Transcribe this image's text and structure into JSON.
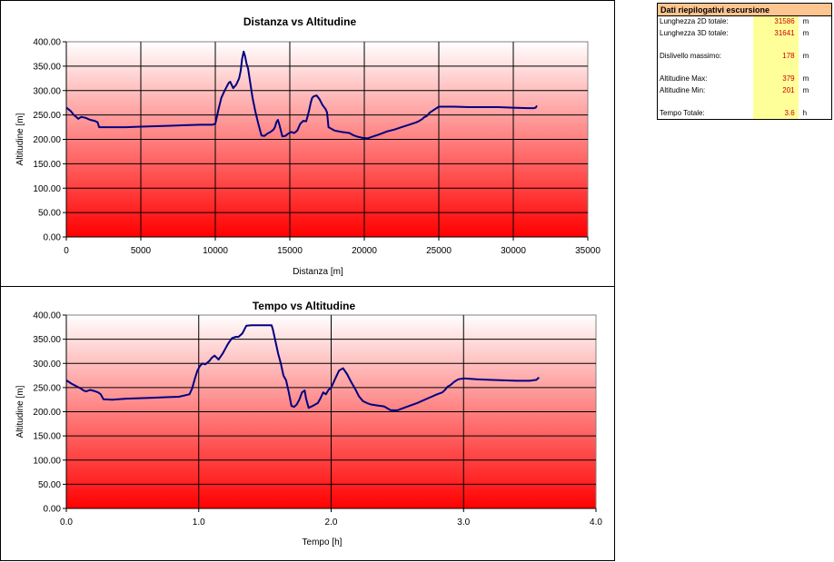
{
  "summary": {
    "title": "Dati riepilogativi escursione",
    "rows": [
      {
        "label": "Lunghezza 2D totale:",
        "value": "31586",
        "unit": "m"
      },
      {
        "label": "Lunghezza 3D totale:",
        "value": "31641",
        "unit": "m"
      },
      {
        "label": "",
        "value": "",
        "unit": ""
      },
      {
        "label": "Dislivello massimo:",
        "value": "178",
        "unit": "m"
      },
      {
        "label": "",
        "value": "",
        "unit": ""
      },
      {
        "label": "Altitudine Max:",
        "value": "379",
        "unit": "m"
      },
      {
        "label": "Altitudine Min:",
        "value": "201",
        "unit": "m"
      },
      {
        "label": "",
        "value": "",
        "unit": ""
      },
      {
        "label": "Tempo Totale:",
        "value": "3.6",
        "unit": "h"
      }
    ]
  },
  "chart_data": [
    {
      "type": "line",
      "title": "Distanza vs Altitudine",
      "xlabel": "Distanza [m]",
      "ylabel": "Altitudine [m]",
      "xlim": [
        0,
        35000
      ],
      "ylim": [
        0,
        400
      ],
      "xticks": [
        "0",
        "5000",
        "10000",
        "15000",
        "20000",
        "25000",
        "30000",
        "35000"
      ],
      "yticks": [
        "0.00",
        "50.00",
        "100.00",
        "150.00",
        "200.00",
        "250.00",
        "300.00",
        "350.00",
        "400.00"
      ],
      "grid": true,
      "line_color": "#000080",
      "background": "gradient white-to-red",
      "series": [
        {
          "x": [
            0,
            300,
            500,
            700,
            800,
            1000,
            1300,
            1600,
            1900,
            2100,
            2200,
            2500,
            3000,
            4000,
            5000,
            6000,
            7000,
            8000,
            9000,
            9800,
            9900,
            10000,
            10100,
            10200,
            10400,
            10600,
            10800,
            10900,
            11000,
            11200,
            11400,
            11600,
            11700,
            11800,
            11900,
            12000,
            12100,
            12200,
            12300,
            12500,
            12700,
            12900,
            13100,
            13300,
            13500,
            13700,
            13900,
            14000,
            14100,
            14200,
            14300,
            14500,
            14700,
            14900,
            15100,
            15300,
            15500,
            15700,
            15900,
            16100,
            16200,
            16300,
            16400,
            16500,
            16600,
            16800,
            17000,
            17200,
            17400,
            17500,
            17600,
            18000,
            18500,
            19000,
            19300,
            19600,
            19900,
            20200,
            20500,
            21000,
            21500,
            22000,
            22500,
            23000,
            23500,
            23700,
            23900,
            24000,
            24200,
            24400,
            24500,
            24600,
            25000,
            26000,
            27000,
            28000,
            29000,
            30000,
            31000,
            31400,
            31500,
            31586
          ],
          "y": [
            265,
            258,
            250,
            245,
            242,
            246,
            244,
            240,
            238,
            235,
            225,
            225,
            225,
            225,
            226,
            227,
            228,
            229,
            230,
            230,
            231,
            232,
            245,
            260,
            285,
            298,
            310,
            316,
            318,
            305,
            312,
            325,
            340,
            365,
            380,
            370,
            355,
            345,
            325,
            285,
            255,
            230,
            208,
            207,
            212,
            215,
            220,
            225,
            235,
            240,
            230,
            206,
            207,
            212,
            215,
            213,
            218,
            232,
            238,
            237,
            248,
            260,
            275,
            285,
            288,
            290,
            282,
            270,
            262,
            255,
            225,
            218,
            215,
            213,
            208,
            205,
            203,
            202,
            205,
            210,
            216,
            220,
            225,
            230,
            235,
            238,
            242,
            245,
            248,
            255,
            257,
            259,
            267,
            267,
            266,
            266,
            266,
            265,
            264,
            264,
            265,
            269
          ]
        }
      ]
    },
    {
      "type": "line",
      "title": "Tempo vs Altitudine",
      "xlabel": "Tempo [h]",
      "ylabel": "Altitudine [m]",
      "xlim": [
        0,
        4
      ],
      "ylim": [
        0,
        400
      ],
      "xticks": [
        "0.0",
        "1.0",
        "2.0",
        "3.0",
        "4.0"
      ],
      "yticks": [
        "0.00",
        "50.00",
        "100.00",
        "150.00",
        "200.00",
        "250.00",
        "300.00",
        "350.00",
        "400.00"
      ],
      "grid": true,
      "line_color": "#000080",
      "background": "gradient white-to-red",
      "series": [
        {
          "x": [
            0,
            0.04,
            0.08,
            0.11,
            0.13,
            0.15,
            0.18,
            0.21,
            0.24,
            0.26,
            0.28,
            0.35,
            0.45,
            0.55,
            0.65,
            0.75,
            0.85,
            0.93,
            0.95,
            0.97,
            0.99,
            1.01,
            1.03,
            1.05,
            1.08,
            1.1,
            1.12,
            1.15,
            1.18,
            1.2,
            1.22,
            1.25,
            1.28,
            1.3,
            1.33,
            1.36,
            1.4,
            1.45,
            1.5,
            1.55,
            1.56,
            1.58,
            1.6,
            1.62,
            1.64,
            1.66,
            1.68,
            1.7,
            1.72,
            1.74,
            1.76,
            1.78,
            1.8,
            1.81,
            1.83,
            1.86,
            1.88,
            1.9,
            1.92,
            1.94,
            1.96,
            1.98,
            2.0,
            2.03,
            2.06,
            2.09,
            2.12,
            2.15,
            2.18,
            2.21,
            2.24,
            2.27,
            2.3,
            2.35,
            2.4,
            2.45,
            2.5,
            2.55,
            2.6,
            2.65,
            2.7,
            2.75,
            2.8,
            2.84,
            2.86,
            2.88,
            2.9,
            2.93,
            2.96,
            3.0,
            3.1,
            3.2,
            3.3,
            3.4,
            3.5,
            3.55,
            3.57
          ],
          "y": [
            265,
            258,
            252,
            248,
            244,
            242,
            245,
            243,
            240,
            236,
            226,
            225,
            227,
            228,
            229,
            230,
            231,
            236,
            248,
            268,
            285,
            295,
            300,
            298,
            305,
            312,
            316,
            308,
            320,
            330,
            340,
            352,
            355,
            355,
            362,
            378,
            379,
            379,
            379,
            379,
            370,
            345,
            320,
            300,
            275,
            265,
            240,
            212,
            210,
            215,
            225,
            240,
            244,
            228,
            208,
            212,
            215,
            218,
            228,
            240,
            236,
            245,
            250,
            268,
            285,
            290,
            278,
            262,
            248,
            232,
            222,
            218,
            215,
            213,
            211,
            203,
            203,
            208,
            213,
            218,
            224,
            230,
            236,
            240,
            245,
            252,
            255,
            262,
            267,
            269,
            267,
            266,
            265,
            264,
            264,
            266,
            271
          ]
        }
      ]
    }
  ]
}
